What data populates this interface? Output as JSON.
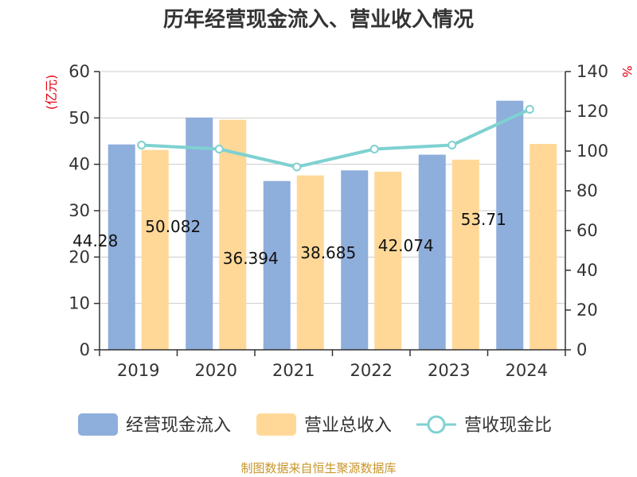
{
  "title": "历年经营现金流入、营业收入情况",
  "source": "制图数据来自恒生聚源数据库",
  "colors": {
    "cash_bar": "#8eaedc",
    "revenue_bar": "#ffd898",
    "ratio_line": "#7fd1d1",
    "unit": "#e60012"
  },
  "chart_data": {
    "type": "bar",
    "title": "历年经营现金流入、营业收入情况",
    "categories": [
      "2019",
      "2020",
      "2021",
      "2022",
      "2023",
      "2024"
    ],
    "left_axis": {
      "unit": "(亿元)",
      "ylim": [
        0,
        60
      ],
      "ticks": [
        "0",
        "10",
        "20",
        "30",
        "40",
        "50",
        "60"
      ]
    },
    "right_axis": {
      "unit": "%",
      "ylim": [
        0,
        140
      ],
      "ticks": [
        "0",
        "20",
        "40",
        "60",
        "80",
        "100",
        "120",
        "140"
      ]
    },
    "series": [
      {
        "name": "经营现金流入",
        "type": "bar",
        "axis": "left",
        "values": [
          44.28,
          50.08,
          36.39,
          38.69,
          42.07,
          53.71
        ]
      },
      {
        "name": "营业总收入",
        "type": "bar",
        "axis": "left",
        "values": [
          43.1,
          49.6,
          37.6,
          38.4,
          41.0,
          44.4
        ]
      },
      {
        "name": "营收现金比",
        "type": "line",
        "axis": "right",
        "values": [
          103,
          101,
          92,
          101,
          103,
          121
        ]
      }
    ],
    "data_labels": [
      "44.28",
      "50.082",
      "36.394",
      "38.685",
      "42.074",
      "53.71"
    ],
    "grid": true,
    "legend_position": "bottom"
  }
}
